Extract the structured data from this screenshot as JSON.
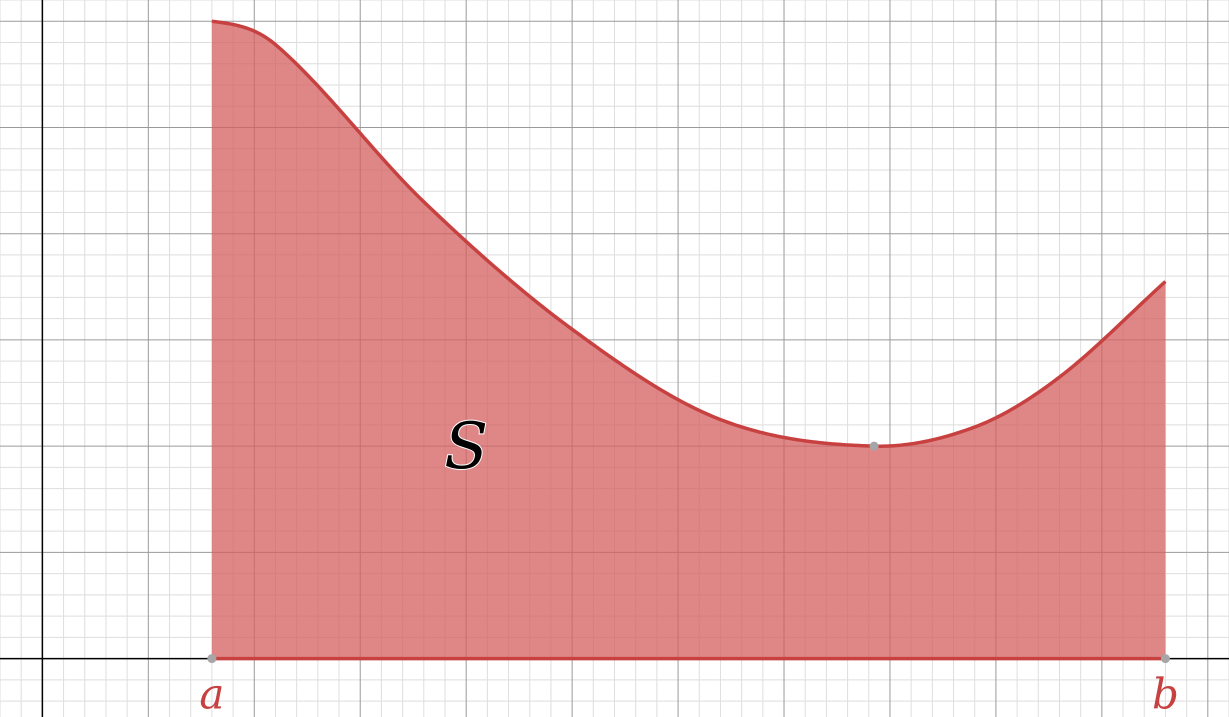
{
  "chart_data": {
    "type": "area",
    "title": "",
    "xlabel": "",
    "ylabel": "",
    "grid": true,
    "xlim": [
      -0.4,
      11.2
    ],
    "ylim": [
      -0.55,
      6.2
    ],
    "major_step": 1,
    "minor_step": 0.2,
    "curve": {
      "x": [
        1.6,
        2.2,
        3.6,
        5.0,
        6.4,
        7.85,
        8.8,
        9.6,
        10.6
      ],
      "y": [
        6.0,
        5.78,
        4.3,
        3.1,
        2.25,
        2.0,
        2.18,
        2.65,
        3.55
      ]
    },
    "minimum_point": {
      "x": 7.85,
      "y": 2.0
    },
    "endpoints": [
      {
        "label": "a",
        "x": 1.6,
        "y": 0
      },
      {
        "label": "b",
        "x": 10.6,
        "y": 0
      }
    ],
    "region": {
      "label": "S",
      "x": 4.0,
      "y": 2.0
    }
  },
  "colors": {
    "curve": "#c84141",
    "fill": "#d45f5f",
    "fill_opacity": 0.75,
    "axis": "#000000",
    "major_grid": "#9a9a9a",
    "minor_grid": "#dedede",
    "point": "#a6a6a6"
  }
}
